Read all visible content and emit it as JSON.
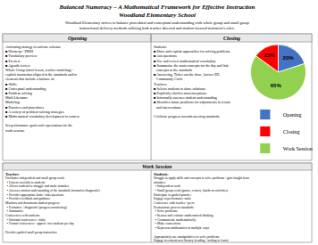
{
  "chart_data": {
    "type": "pie",
    "title": "Balanced Numeracy – A Mathematical Framework for Effective Instruction\nWoodland Elementary School",
    "subtitle": "Woodland Elementary strives to balance procedural and conceptual understanding with whole group and small group\ninstructional delivery methods utilizing both teacher directed and student focused instructor's roles.",
    "categories": [
      "Opening",
      "Closing",
      "Work Session"
    ],
    "values": [
      20,
      15,
      65
    ],
    "value_labels": [
      "20%",
      "15%",
      "65%"
    ],
    "colors": [
      "#4472C4",
      "#FF0000",
      "#92D050"
    ],
    "data_labels": true,
    "legend": "right",
    "annotations": [
      "Opening",
      "Activating strategy to activate schema:\n■ Warm-up / DRBI\n■ Vocabulary preview\n■ Preview\n■ Agenda review\nWhole Group (mini-lesson, teacher modeling) -\nexplicit instruction aligned to the standards and/or\nelements that include a balance of:\n■ Skills\n■ Conceptual understanding\n■ Problem solving\nMath Literature\nModeling:\n■ Practices and procedures\n■ A variety of problem-solving strategies\n■ Mathematical vocabulary development in context\n\nSet performance goals and expectations for the\nwork session.",
      "Closing",
      "Students:\n■ Share and explain approaches for solving problems\n■ Ask questions\n■ Use and review mathematical vocabulary\n■ Summarize the main concepts for the day and link\n   concepts to the standards\n■ Answering, Ticket out the door, Answer ED,\n   Community Circle\nTeachers:\n■ Selects students to share solutions\n■ Explicitly clarifies misconceptions\n■ Informally assesses student understanding\n■ Identifies future problems for adjustments in lesson\n   and interventions\n\nCelebrate progress towards meeting standards",
      "Work Session",
      "Teacher:",
      "Facilitates independent and small group work:\n  ▪ Listens carefully to students\n  ▪ Allows students to struggle and make mistakes\n  ▪ Assesses student understanding of the standards (formative/diagnostic)\n  ▪ Provides appropriate hints / asks questions\n  ▪ Provides feedback and guidance\nMonitors and documents student progress:\n  ▪ Formative / diagnostic (progress monitoring)\n  ▪ Summative\nConferences with students:\n  ▪ Informal conferences - daily\n  ▪ Formal conferences - approx. two students per day\n\nProvides guided small group instruction",
      "Students:",
      "Struggle to apply skills and concepts to solve problems / gain insight from\nmistakes:\n  ▪ Independent work\n  ▪ Small group work (games, centers, hands-on activities)\nParticipate in guided practice\nEngage in performance tasks\nConference with teacher / peers\nDemonstrate process standards:\n  ▪ Solve problems\n  ▪ Reason and evaluate mathematical thinking\n  ▪ Communicate mathematically\n  ▪ Make connections\n  ▪ Represent mathematics in multiple ways\n\nAppropriately use manipulatives to solve problems\nEngage in content area literacy (reading / writing to learn)"
    ]
  }
}
